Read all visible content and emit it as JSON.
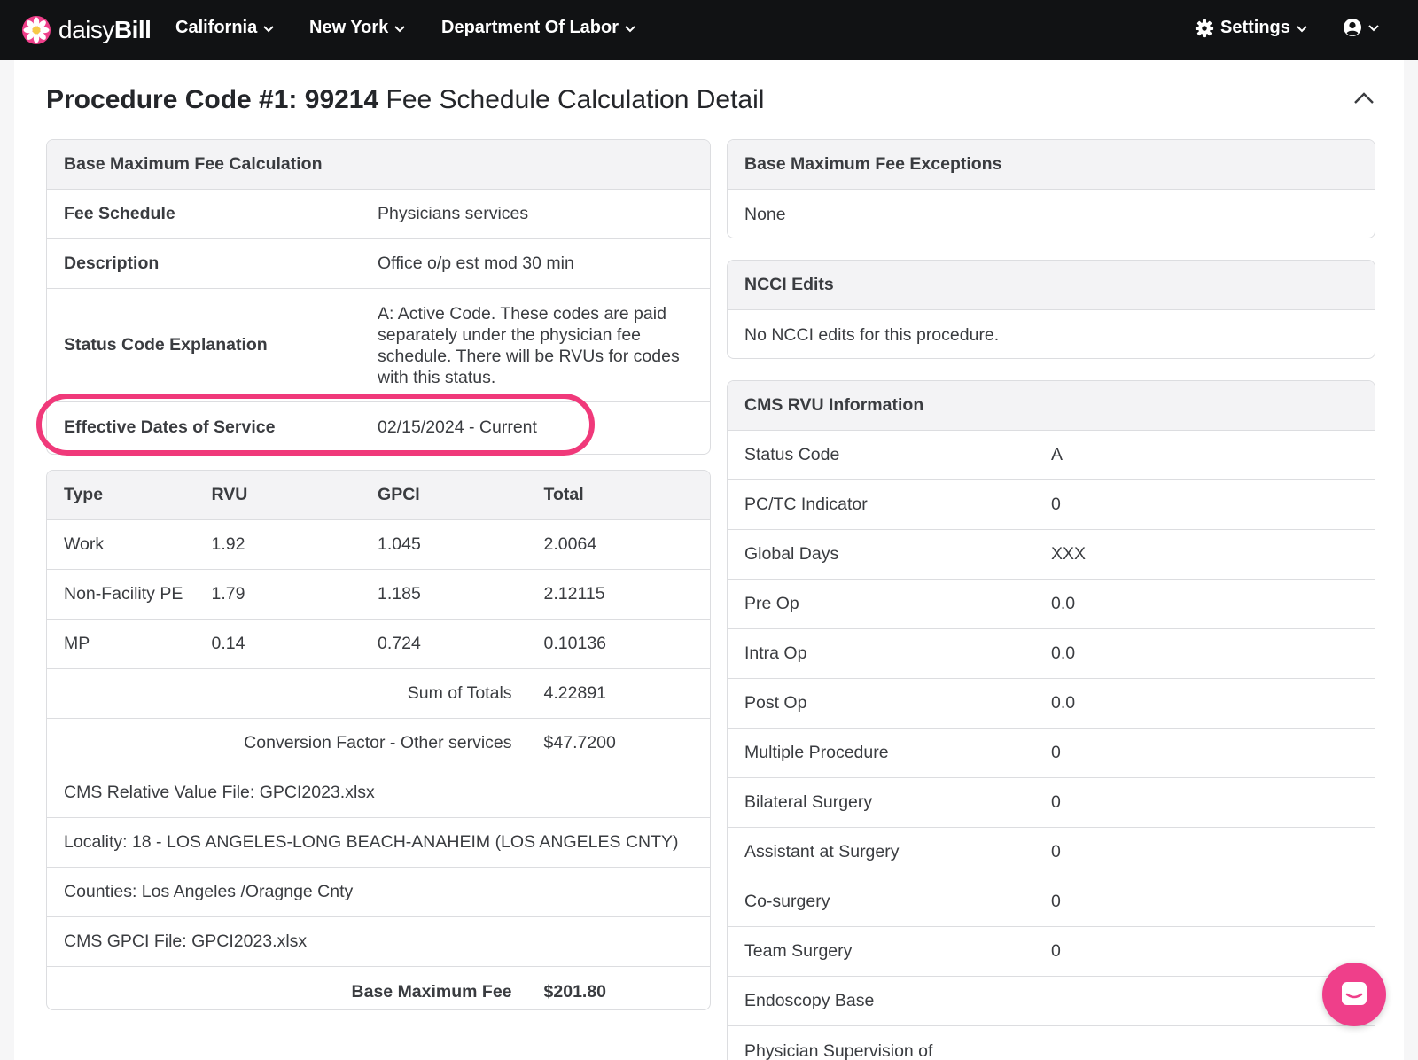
{
  "brand": {
    "part1": "daisy",
    "part2": "Bill"
  },
  "nav": {
    "california": "California",
    "newyork": "New York",
    "dol": "Department Of Labor",
    "settings": "Settings"
  },
  "page": {
    "title_strong": "Procedure Code #1: 99214",
    "title_rest": " Fee Schedule Calculation Detail"
  },
  "calc": {
    "header": "Base Maximum Fee Calculation",
    "rows": [
      {
        "label": "Fee Schedule",
        "value": "Physicians services"
      },
      {
        "label": "Description",
        "value": "Office o/p est mod 30 min"
      },
      {
        "label": "Status Code Explanation",
        "value": "A: Active Code. These codes are paid separately under the physician fee schedule. There will be RVUs for codes with this status."
      },
      {
        "label": "Effective Dates of Service",
        "value": "02/15/2024 - Current"
      }
    ]
  },
  "rvu": {
    "headers": [
      "Type",
      "RVU",
      "GPCI",
      "Total"
    ],
    "rows": [
      [
        "Work",
        "1.92",
        "1.045",
        "2.0064"
      ],
      [
        "Non-Facility PE",
        "1.79",
        "1.185",
        "2.12115"
      ],
      [
        "MP",
        "0.14",
        "0.724",
        "0.10136"
      ]
    ],
    "sum_label": "Sum of Totals",
    "sum_value": "4.22891",
    "cf_label": "Conversion Factor - Other services",
    "cf_value": "$47.7200",
    "rvu_file": "CMS Relative Value File: GPCI2023.xlsx",
    "locality": "Locality: 18 - LOS ANGELES-LONG BEACH-ANAHEIM (LOS ANGELES CNTY)",
    "counties": "Counties: Los Angeles /Oragnge Cnty",
    "gpci_file": "CMS GPCI File: GPCI2023.xlsx",
    "bmf_label": "Base Maximum Fee",
    "bmf_value": "$201.80"
  },
  "exceptions": {
    "header": "Base Maximum Fee Exceptions",
    "value": "None"
  },
  "ncci": {
    "header": "NCCI Edits",
    "value": "No NCCI edits for this procedure."
  },
  "cms": {
    "header": "CMS RVU Information",
    "rows": [
      {
        "label": "Status Code",
        "value": "A"
      },
      {
        "label": "PC/TC Indicator",
        "value": "0"
      },
      {
        "label": "Global Days",
        "value": "XXX"
      },
      {
        "label": "Pre Op",
        "value": "0.0"
      },
      {
        "label": "Intra Op",
        "value": "0.0"
      },
      {
        "label": "Post Op",
        "value": "0.0"
      },
      {
        "label": "Multiple Procedure",
        "value": "0"
      },
      {
        "label": "Bilateral Surgery",
        "value": "0"
      },
      {
        "label": "Assistant at Surgery",
        "value": "0"
      },
      {
        "label": "Co-surgery",
        "value": "0"
      },
      {
        "label": "Team Surgery",
        "value": "0"
      },
      {
        "label": "Endoscopy Base",
        "value": ""
      },
      {
        "label": "Physician Supervision of",
        "value": ""
      }
    ]
  },
  "colors": {
    "highlight": "#f0397a",
    "chat": "#ef3f8a",
    "nav_bg": "#111214"
  }
}
